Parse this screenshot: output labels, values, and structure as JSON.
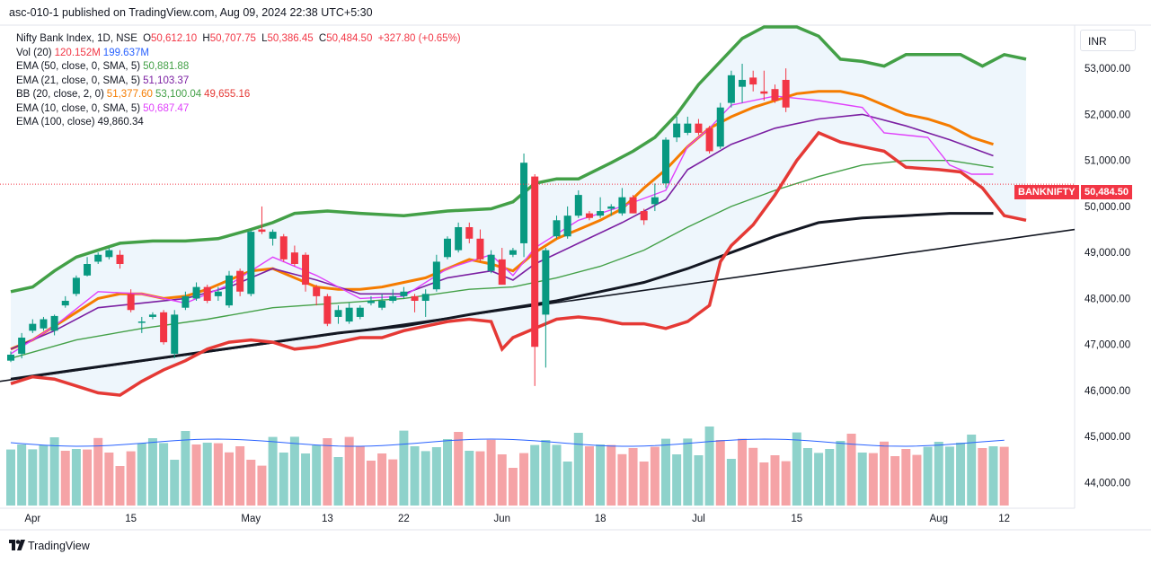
{
  "header": {
    "published_text": "asc-010-1 published on TradingView.com, Aug 09, 2024 22:38 UTC+5:30"
  },
  "currency": "INR",
  "legend": {
    "symbol": "Nifty Bank Index, 1D, NSE",
    "ohlc": {
      "o_label": "O",
      "o": "50,612.10",
      "h_label": "H",
      "h": "50,707.75",
      "l_label": "L",
      "l": "50,386.45",
      "c_label": "C",
      "c": "50,484.50",
      "change": "+327.80 (+0.65%)"
    },
    "indicators": [
      {
        "label": "Vol (20)",
        "values": [
          "120.152M",
          "199.637M"
        ],
        "colors": [
          "#f23645",
          "#2962ff"
        ]
      },
      {
        "label": "EMA (50, close, 0, SMA, 5)",
        "values": [
          "50,881.88"
        ],
        "colors": [
          "#43a047"
        ]
      },
      {
        "label": "EMA (21, close, 0, SMA, 5)",
        "values": [
          "51,103.37"
        ],
        "colors": [
          "#7b1fa2"
        ]
      },
      {
        "label": "BB (20, close, 2, 0)",
        "values": [
          "51,377.60",
          "53,100.04",
          "49,655.16"
        ],
        "colors": [
          "#f57c00",
          "#43a047",
          "#e53935"
        ]
      },
      {
        "label": "EMA (10, close, 0, SMA, 5)",
        "values": [
          "50,687.47"
        ],
        "colors": [
          "#e040fb"
        ]
      },
      {
        "label": "EMA (100, close)",
        "values": [
          "49,860.34"
        ],
        "colors": [
          "#131722"
        ]
      }
    ]
  },
  "price_badges": {
    "symbol_label": "BANKNIFTY",
    "last_price": "50,484.50"
  },
  "branding": "TradingView",
  "colors": {
    "up": "#089981",
    "down": "#f23645",
    "vol_up": "#8ed2cb",
    "vol_down": "#f5a3a6",
    "bb_upper": "#43a047",
    "bb_lower": "#e53935",
    "bb_basis": "#f57c00",
    "ema10": "#e040fb",
    "ema21": "#7b1fa2",
    "ema50": "#43a047",
    "ema100": "#131722",
    "vol_ma": "#2962ff",
    "trendline": "#131722",
    "bb_fill": "#eef6fc"
  },
  "chart_data": {
    "type": "candlestick",
    "title": "Nifty Bank Index, 1D, NSE",
    "y_axis": {
      "ylim": [
        43600,
        53900
      ],
      "ticks": [
        "53,000.00",
        "52,000.00",
        "51,000.00",
        "50,000.00",
        "49,000.00",
        "48,000.00",
        "47,000.00",
        "46,000.00",
        "45,000.00",
        "44,000.00"
      ],
      "tick_values": [
        53000,
        52000,
        51000,
        50000,
        49000,
        48000,
        47000,
        46000,
        45000,
        44000
      ],
      "scale": "linear",
      "position": "right"
    },
    "x_axis": {
      "labels": [
        "Apr",
        "15",
        "May",
        "13",
        "22",
        "Jun",
        "18",
        "Jul",
        "15",
        "Aug",
        "12"
      ],
      "label_bar_index": [
        2,
        11,
        22,
        29,
        36,
        45,
        54,
        63,
        72,
        85,
        91
      ]
    },
    "grid": false,
    "candles": [
      {
        "o": 46650,
        "h": 46850,
        "l": 46620,
        "c": 46780
      },
      {
        "o": 46800,
        "h": 47250,
        "l": 46700,
        "c": 47150
      },
      {
        "o": 47300,
        "h": 47550,
        "l": 47250,
        "c": 47450
      },
      {
        "o": 47350,
        "h": 47600,
        "l": 47300,
        "c": 47550
      },
      {
        "o": 47300,
        "h": 47650,
        "l": 47200,
        "c": 47620
      },
      {
        "o": 47850,
        "h": 48050,
        "l": 47800,
        "c": 47950
      },
      {
        "o": 48100,
        "h": 48500,
        "l": 48050,
        "c": 48450
      },
      {
        "o": 48500,
        "h": 48900,
        "l": 48480,
        "c": 48750
      },
      {
        "o": 48800,
        "h": 49000,
        "l": 48750,
        "c": 48950
      },
      {
        "o": 48900,
        "h": 49100,
        "l": 48850,
        "c": 49050
      },
      {
        "o": 48950,
        "h": 49050,
        "l": 48650,
        "c": 48750
      },
      {
        "o": 48100,
        "h": 48200,
        "l": 47700,
        "c": 47750
      },
      {
        "o": 47500,
        "h": 47600,
        "l": 47250,
        "c": 47500
      },
      {
        "o": 47600,
        "h": 47700,
        "l": 47550,
        "c": 47650
      },
      {
        "o": 47700,
        "h": 47750,
        "l": 47000,
        "c": 47050
      },
      {
        "o": 46800,
        "h": 47750,
        "l": 46700,
        "c": 47650
      },
      {
        "o": 47800,
        "h": 48150,
        "l": 47750,
        "c": 48050
      },
      {
        "o": 48000,
        "h": 48350,
        "l": 47950,
        "c": 48250
      },
      {
        "o": 48250,
        "h": 48300,
        "l": 47900,
        "c": 47950
      },
      {
        "o": 48050,
        "h": 48250,
        "l": 47950,
        "c": 48150
      },
      {
        "o": 47850,
        "h": 48600,
        "l": 47800,
        "c": 48500
      },
      {
        "o": 48600,
        "h": 48650,
        "l": 48050,
        "c": 48150
      },
      {
        "o": 48100,
        "h": 49500,
        "l": 48050,
        "c": 49450
      },
      {
        "o": 49500,
        "h": 50000,
        "l": 49400,
        "c": 49450
      },
      {
        "o": 49300,
        "h": 49500,
        "l": 49150,
        "c": 49450
      },
      {
        "o": 49350,
        "h": 49400,
        "l": 48800,
        "c": 48850
      },
      {
        "o": 49000,
        "h": 49150,
        "l": 48700,
        "c": 48750
      },
      {
        "o": 48950,
        "h": 49000,
        "l": 48150,
        "c": 48300
      },
      {
        "o": 48250,
        "h": 48300,
        "l": 47850,
        "c": 48050
      },
      {
        "o": 48050,
        "h": 48100,
        "l": 47400,
        "c": 47450
      },
      {
        "o": 47600,
        "h": 47850,
        "l": 47450,
        "c": 47750
      },
      {
        "o": 47500,
        "h": 47900,
        "l": 47450,
        "c": 47800
      },
      {
        "o": 47600,
        "h": 47850,
        "l": 47550,
        "c": 47800
      },
      {
        "o": 47900,
        "h": 48050,
        "l": 47850,
        "c": 47950
      },
      {
        "o": 47800,
        "h": 48100,
        "l": 47750,
        "c": 47950
      },
      {
        "o": 47950,
        "h": 48200,
        "l": 47900,
        "c": 48050
      },
      {
        "o": 48050,
        "h": 48250,
        "l": 48000,
        "c": 48150
      },
      {
        "o": 48050,
        "h": 48100,
        "l": 47700,
        "c": 47950
      },
      {
        "o": 47950,
        "h": 48200,
        "l": 47600,
        "c": 48100
      },
      {
        "o": 48200,
        "h": 48950,
        "l": 48150,
        "c": 48800
      },
      {
        "o": 48900,
        "h": 49350,
        "l": 48850,
        "c": 49300
      },
      {
        "o": 49050,
        "h": 49650,
        "l": 49000,
        "c": 49550
      },
      {
        "o": 49550,
        "h": 49650,
        "l": 49200,
        "c": 49300
      },
      {
        "o": 49300,
        "h": 49500,
        "l": 48800,
        "c": 48850
      },
      {
        "o": 48600,
        "h": 49050,
        "l": 48550,
        "c": 48950
      },
      {
        "o": 48850,
        "h": 49100,
        "l": 48300,
        "c": 48300
      },
      {
        "o": 48950,
        "h": 49100,
        "l": 48900,
        "c": 49050
      },
      {
        "o": 49200,
        "h": 51150,
        "l": 48900,
        "c": 50950
      },
      {
        "o": 50650,
        "h": 50700,
        "l": 46100,
        "c": 46950
      },
      {
        "o": 47650,
        "h": 49100,
        "l": 46500,
        "c": 49050
      },
      {
        "o": 49350,
        "h": 49800,
        "l": 49300,
        "c": 49700
      },
      {
        "o": 49350,
        "h": 50000,
        "l": 49300,
        "c": 49800
      },
      {
        "o": 49800,
        "h": 50350,
        "l": 49750,
        "c": 50250
      },
      {
        "o": 49850,
        "h": 49900,
        "l": 49700,
        "c": 49750
      },
      {
        "o": 49800,
        "h": 50200,
        "l": 49750,
        "c": 49900
      },
      {
        "o": 49950,
        "h": 50050,
        "l": 49800,
        "c": 50000
      },
      {
        "o": 49850,
        "h": 50400,
        "l": 49800,
        "c": 50200
      },
      {
        "o": 50200,
        "h": 50250,
        "l": 49850,
        "c": 49850
      },
      {
        "o": 49900,
        "h": 49950,
        "l": 49600,
        "c": 49700
      },
      {
        "o": 50050,
        "h": 50500,
        "l": 49900,
        "c": 50200
      },
      {
        "o": 50500,
        "h": 51500,
        "l": 50400,
        "c": 51450
      },
      {
        "o": 51500,
        "h": 51950,
        "l": 51400,
        "c": 51800
      },
      {
        "o": 51600,
        "h": 51950,
        "l": 51550,
        "c": 51800
      },
      {
        "o": 51800,
        "h": 51900,
        "l": 51550,
        "c": 51600
      },
      {
        "o": 51700,
        "h": 51750,
        "l": 51150,
        "c": 51200
      },
      {
        "o": 51300,
        "h": 52250,
        "l": 51250,
        "c": 52150
      },
      {
        "o": 52250,
        "h": 52950,
        "l": 52150,
        "c": 52850
      },
      {
        "o": 52600,
        "h": 53100,
        "l": 52250,
        "c": 52750
      },
      {
        "o": 52800,
        "h": 52950,
        "l": 52500,
        "c": 52650
      },
      {
        "o": 52500,
        "h": 52950,
        "l": 52300,
        "c": 52450
      },
      {
        "o": 52550,
        "h": 52650,
        "l": 52250,
        "c": 52300
      },
      {
        "o": 52750,
        "h": 53000,
        "l": 52050,
        "c": 52150
      }
    ],
    "volume": [
      {
        "v": 52,
        "up": true
      },
      {
        "v": 45,
        "up": true
      },
      {
        "v": 48,
        "up": true
      },
      {
        "v": 40,
        "up": true
      },
      {
        "v": 55,
        "up": true
      },
      {
        "v": 50,
        "up": false
      },
      {
        "v": 40,
        "up": true
      },
      {
        "v": 47,
        "up": false
      },
      {
        "v": 46,
        "up": false
      },
      {
        "v": 40,
        "up": false
      },
      {
        "v": 35,
        "up": false
      },
      {
        "v": 37,
        "up": false
      }
    ],
    "indicator_series": [
      "BB (20, close, 2, 0)",
      "EMA (10, close, 0, SMA, 5)",
      "EMA (21, close, 0, SMA, 5)",
      "EMA (50, close, 0, SMA, 5)",
      "EMA (100, close)",
      "Vol (20)"
    ]
  }
}
